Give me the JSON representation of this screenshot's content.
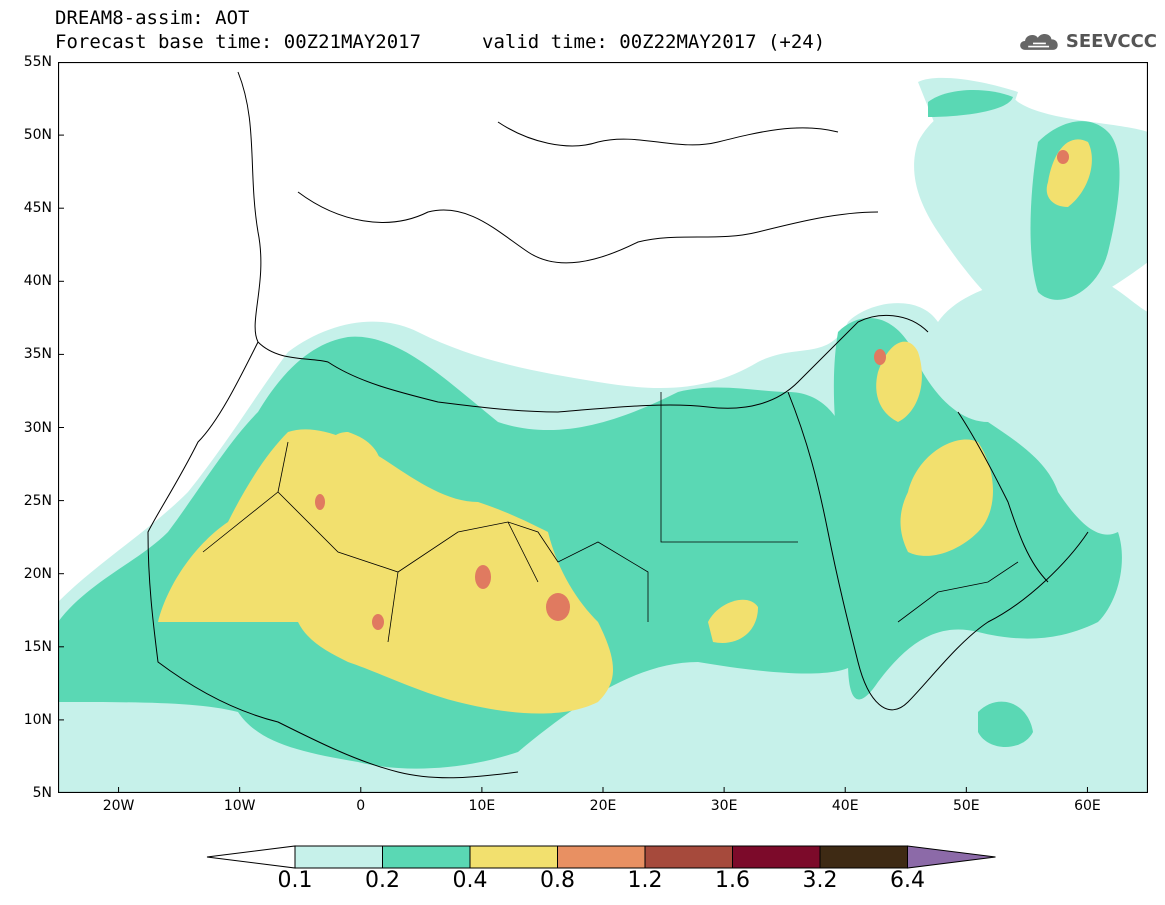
{
  "header": {
    "title": "DREAM8-assim: AOT",
    "base_time": "Forecast base time: 00Z21MAY2017",
    "valid_time": "valid time: 00Z22MAY2017 (+24)"
  },
  "logo": {
    "text": "SEEVCCC",
    "icon": "cloud-icon"
  },
  "axes": {
    "lat_labels": [
      "55N",
      "50N",
      "45N",
      "40N",
      "35N",
      "30N",
      "25N",
      "20N",
      "15N",
      "10N",
      "5N"
    ],
    "lat_values": [
      55,
      50,
      45,
      40,
      35,
      30,
      25,
      20,
      15,
      10,
      5
    ],
    "lon_labels": [
      "20W",
      "10W",
      "0",
      "10E",
      "20E",
      "30E",
      "40E",
      "50E",
      "60E"
    ],
    "lon_values": [
      -20,
      -10,
      0,
      10,
      20,
      30,
      40,
      50,
      60
    ],
    "lon_range": [
      -25,
      65
    ],
    "lat_range": [
      5,
      55
    ]
  },
  "colorbar": {
    "levels": [
      "0.1",
      "0.2",
      "0.4",
      "0.8",
      "1.2",
      "1.6",
      "3.2",
      "6.4"
    ],
    "colors": [
      "#c6f1ea",
      "#5ad8b4",
      "#f2e06e",
      "#e89062",
      "#a64a3c",
      "#7c0a2a",
      "#3e2a14",
      "#8c6aa8"
    ],
    "under_color": "#ffffff"
  },
  "colors": {
    "c1": "#c6f1ea",
    "c2": "#5ad8b4",
    "c3": "#f2e06e",
    "c4": "#e07a60"
  }
}
